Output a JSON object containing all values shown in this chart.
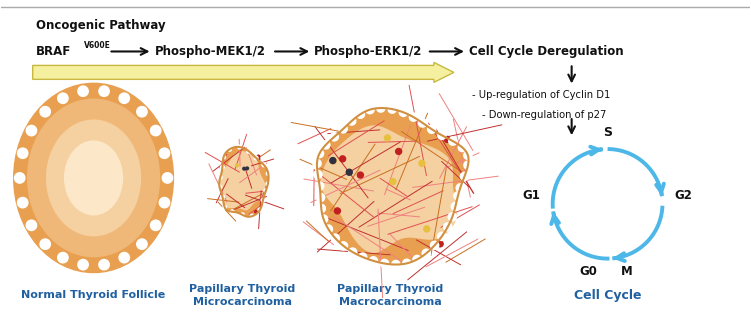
{
  "bg_color": "#ffffff",
  "top_line_color": "#aaaaaa",
  "title_text": "Oncogenic Pathway",
  "arrow_color": "#111111",
  "big_arrow_color": "#f5f0a0",
  "big_arrow_edge_color": "#c8b840",
  "cell_cycle_label": "Cell Cycle",
  "cycle_arrow_color": "#4db8e8",
  "label_color": "#2060a0",
  "follicle_label": "Normal Thyroid Follicle",
  "micro_label": "Papillary Thyroid\nMicrocarcinoma",
  "macro_label": "Papillary Thyroid\nMacrocarcinoma",
  "orange_outer": "#e8a050",
  "orange_border": "#d09040",
  "peach_mid": "#f0b878",
  "peach_inner": "#f5d0a0",
  "peach_center": "#fce8c8",
  "red_line1": "#c03030",
  "red_line2": "#e05050",
  "red_line3": "#f08080",
  "red_line4": "#c87020",
  "yellow_dot": "#e8c040",
  "red_dot": "#c02020",
  "dark_dot": "#303040"
}
